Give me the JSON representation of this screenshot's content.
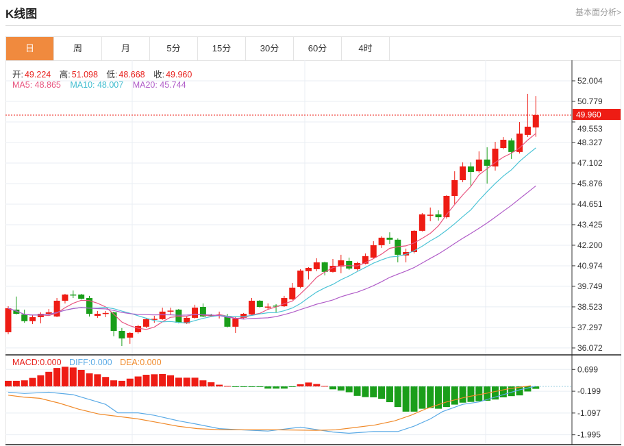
{
  "header": {
    "title": "K线图",
    "link": "基本面分析>"
  },
  "tabs": [
    {
      "label": "日",
      "active": true
    },
    {
      "label": "周"
    },
    {
      "label": "月"
    },
    {
      "label": "5分"
    },
    {
      "label": "15分"
    },
    {
      "label": "30分"
    },
    {
      "label": "60分"
    },
    {
      "label": "4时"
    }
  ],
  "ohlc": {
    "open_label": "开:",
    "open": "49.224",
    "high_label": "高:",
    "high": "51.098",
    "low_label": "低:",
    "low": "48.668",
    "close_label": "收:",
    "close": "49.960"
  },
  "ma": {
    "ma5": "MA5: 48.865",
    "ma10": "MA10: 48.007",
    "ma20": "MA20: 45.744"
  },
  "macd_legend": {
    "macd": "MACD:0.000",
    "diff": "DIFF:0.000",
    "dea": "DEA:0.000"
  },
  "colors": {
    "up": "#ee1c14",
    "down": "#1a9e1a",
    "ma5": "#e8547f",
    "ma10": "#4cc4d6",
    "ma20": "#b05cc8",
    "diff": "#5aaae6",
    "dea": "#f08a2a",
    "accent": "#f08a3e"
  },
  "chart_data": [
    {
      "type": "candlestick",
      "price_axis": {
        "ticks": [
          "52.004",
          "50.779",
          "49.553",
          "48.327",
          "47.102",
          "45.876",
          "44.651",
          "43.425",
          "42.200",
          "40.974",
          "39.749",
          "38.523",
          "37.297",
          "36.072"
        ],
        "range": [
          35.66,
          53.23
        ]
      },
      "current_price": "49.960",
      "candles": [
        [
          37.01,
          38.56,
          36.89,
          38.44
        ],
        [
          38.36,
          39.14,
          38.07,
          38.11
        ],
        [
          38.07,
          38.36,
          37.58,
          37.67
        ],
        [
          37.67,
          38.07,
          37.5,
          37.91
        ],
        [
          37.91,
          38.2,
          37.54,
          38.11
        ],
        [
          38.11,
          38.4,
          38.03,
          38.2
        ],
        [
          37.95,
          39.05,
          37.91,
          38.89
        ],
        [
          38.89,
          39.3,
          38.73,
          39.26
        ],
        [
          39.26,
          39.5,
          39.05,
          39.22
        ],
        [
          39.26,
          39.3,
          38.97,
          39.01
        ],
        [
          39.05,
          39.18,
          37.95,
          38.11
        ],
        [
          37.99,
          38.28,
          37.87,
          38.11
        ],
        [
          38.11,
          38.28,
          37.91,
          38.16
        ],
        [
          38.2,
          38.24,
          36.77,
          37.09
        ],
        [
          37.09,
          37.26,
          36.19,
          36.64
        ],
        [
          36.69,
          37.01,
          36.32,
          36.97
        ],
        [
          37.01,
          37.46,
          36.93,
          37.38
        ],
        [
          37.34,
          37.87,
          37.26,
          37.79
        ],
        [
          37.77,
          37.99,
          37.58,
          37.81
        ],
        [
          37.79,
          38.48,
          37.75,
          38.24
        ],
        [
          38.26,
          38.48,
          38.03,
          38.3
        ],
        [
          38.36,
          38.4,
          37.54,
          37.58
        ],
        [
          37.54,
          37.95,
          37.5,
          37.87
        ],
        [
          37.87,
          38.65,
          37.83,
          38.48
        ],
        [
          38.52,
          38.73,
          37.91,
          37.95
        ],
        [
          38.03,
          38.11,
          37.95,
          38.01
        ],
        [
          38.01,
          38.24,
          37.83,
          38.05
        ],
        [
          37.95,
          38.11,
          37.3,
          37.34
        ],
        [
          37.34,
          37.91,
          36.97,
          37.83
        ],
        [
          37.87,
          38.16,
          37.79,
          38.11
        ],
        [
          38.07,
          39.05,
          37.99,
          38.89
        ],
        [
          38.89,
          38.93,
          38.48,
          38.52
        ],
        [
          38.5,
          38.73,
          38.36,
          38.54
        ],
        [
          38.6,
          38.69,
          38.2,
          38.56
        ],
        [
          38.56,
          39.18,
          38.52,
          39.05
        ],
        [
          38.97,
          39.95,
          38.93,
          39.67
        ],
        [
          39.71,
          40.77,
          39.63,
          40.69
        ],
        [
          40.65,
          40.89,
          40.16,
          40.85
        ],
        [
          40.77,
          41.42,
          40.65,
          41.18
        ],
        [
          41.18,
          41.22,
          40.4,
          40.61
        ],
        [
          40.61,
          41.38,
          40.57,
          40.97
        ],
        [
          40.93,
          41.63,
          40.53,
          41.3
        ],
        [
          41.26,
          41.46,
          40.73,
          40.81
        ],
        [
          40.77,
          41.22,
          40.69,
          41.14
        ],
        [
          41.1,
          41.71,
          41.06,
          41.55
        ],
        [
          41.46,
          42.44,
          41.42,
          42.2
        ],
        [
          42.2,
          42.73,
          42.04,
          42.65
        ],
        [
          42.65,
          42.97,
          42.28,
          42.53
        ],
        [
          42.53,
          42.61,
          41.18,
          41.63
        ],
        [
          41.59,
          42.0,
          41.18,
          41.79
        ],
        [
          41.79,
          43.1,
          41.71,
          43.06
        ],
        [
          43.06,
          44.12,
          43.02,
          44.04
        ],
        [
          43.98,
          44.45,
          43.63,
          44.02
        ],
        [
          44.04,
          44.28,
          43.67,
          43.87
        ],
        [
          43.87,
          45.18,
          43.79,
          45.14
        ],
        [
          45.14,
          46.61,
          44.65,
          46.08
        ],
        [
          46.08,
          47.14,
          45.96,
          46.9
        ],
        [
          46.9,
          47.14,
          45.75,
          46.57
        ],
        [
          46.61,
          47.8,
          46.53,
          47.31
        ],
        [
          47.31,
          48.04,
          45.88,
          46.94
        ],
        [
          46.9,
          48.37,
          46.65,
          47.96
        ],
        [
          48.0,
          48.65,
          47.92,
          48.49
        ],
        [
          48.45,
          48.57,
          47.35,
          47.76
        ],
        [
          47.76,
          49.55,
          47.67,
          48.86
        ],
        [
          48.78,
          51.23,
          48.65,
          49.27
        ],
        [
          49.224,
          51.098,
          48.668,
          49.96
        ]
      ]
    },
    {
      "type": "macd",
      "axis": {
        "ticks": [
          "0.699",
          "-0.199",
          "-1.097",
          "-1.995"
        ],
        "range": [
          -2.4,
          1.3
        ]
      },
      "histogram": [
        0.23,
        0.23,
        0.25,
        0.35,
        0.46,
        0.6,
        0.76,
        0.81,
        0.78,
        0.68,
        0.54,
        0.5,
        0.39,
        0.25,
        0.23,
        0.32,
        0.41,
        0.48,
        0.5,
        0.51,
        0.46,
        0.36,
        0.36,
        0.36,
        0.25,
        0.17,
        0.07,
        0.02,
        -0.01,
        -0.01,
        -0.01,
        -0.01,
        -0.09,
        -0.09,
        -0.09,
        -0.01,
        0.09,
        0.16,
        0.1,
        0.02,
        -0.12,
        -0.17,
        -0.24,
        -0.39,
        -0.44,
        -0.45,
        -0.51,
        -0.65,
        -0.85,
        -1.04,
        -1.04,
        -0.92,
        -0.89,
        -0.92,
        -0.85,
        -0.75,
        -0.67,
        -0.64,
        -0.61,
        -0.59,
        -0.54,
        -0.45,
        -0.4,
        -0.37,
        -0.21,
        -0.1
      ],
      "diff": [
        [
          0,
          -0.24
        ],
        [
          2,
          -0.29
        ],
        [
          5,
          -0.24
        ],
        [
          8,
          -0.34
        ],
        [
          10,
          -0.54
        ],
        [
          12,
          -0.74
        ],
        [
          13.5,
          -1.09
        ],
        [
          16,
          -1.09
        ],
        [
          18,
          -1.19
        ],
        [
          21,
          -1.42
        ],
        [
          23,
          -1.54
        ],
        [
          26,
          -1.74
        ],
        [
          28,
          -1.78
        ],
        [
          32,
          -1.84
        ],
        [
          36,
          -1.68
        ],
        [
          40,
          -1.88
        ],
        [
          42,
          -1.93
        ],
        [
          45,
          -1.86
        ],
        [
          48,
          -1.86
        ],
        [
          50,
          -1.64
        ],
        [
          52,
          -1.34
        ],
        [
          53.5,
          -1.04
        ],
        [
          56,
          -0.74
        ],
        [
          58,
          -0.64
        ],
        [
          60,
          -0.44
        ],
        [
          63,
          -0.14
        ],
        [
          65,
          0.01
        ]
      ],
      "dea": [
        [
          0,
          -0.36
        ],
        [
          1.9,
          -0.44
        ],
        [
          3.9,
          -0.49
        ],
        [
          6.3,
          -0.69
        ],
        [
          8.7,
          -0.94
        ],
        [
          11.2,
          -1.14
        ],
        [
          13.6,
          -1.24
        ],
        [
          16,
          -1.34
        ],
        [
          18.5,
          -1.49
        ],
        [
          20.9,
          -1.64
        ],
        [
          23.3,
          -1.74
        ],
        [
          26.2,
          -1.79
        ],
        [
          33.1,
          -1.79
        ],
        [
          37.9,
          -1.81
        ],
        [
          40.4,
          -1.79
        ],
        [
          42.8,
          -1.69
        ],
        [
          45.2,
          -1.59
        ],
        [
          47.6,
          -1.42
        ],
        [
          49.6,
          -1.19
        ],
        [
          51.5,
          -0.92
        ],
        [
          54,
          -0.64
        ],
        [
          56.4,
          -0.44
        ],
        [
          58.8,
          -0.29
        ],
        [
          61.8,
          -0.09
        ],
        [
          64.4,
          0.03
        ]
      ]
    }
  ]
}
